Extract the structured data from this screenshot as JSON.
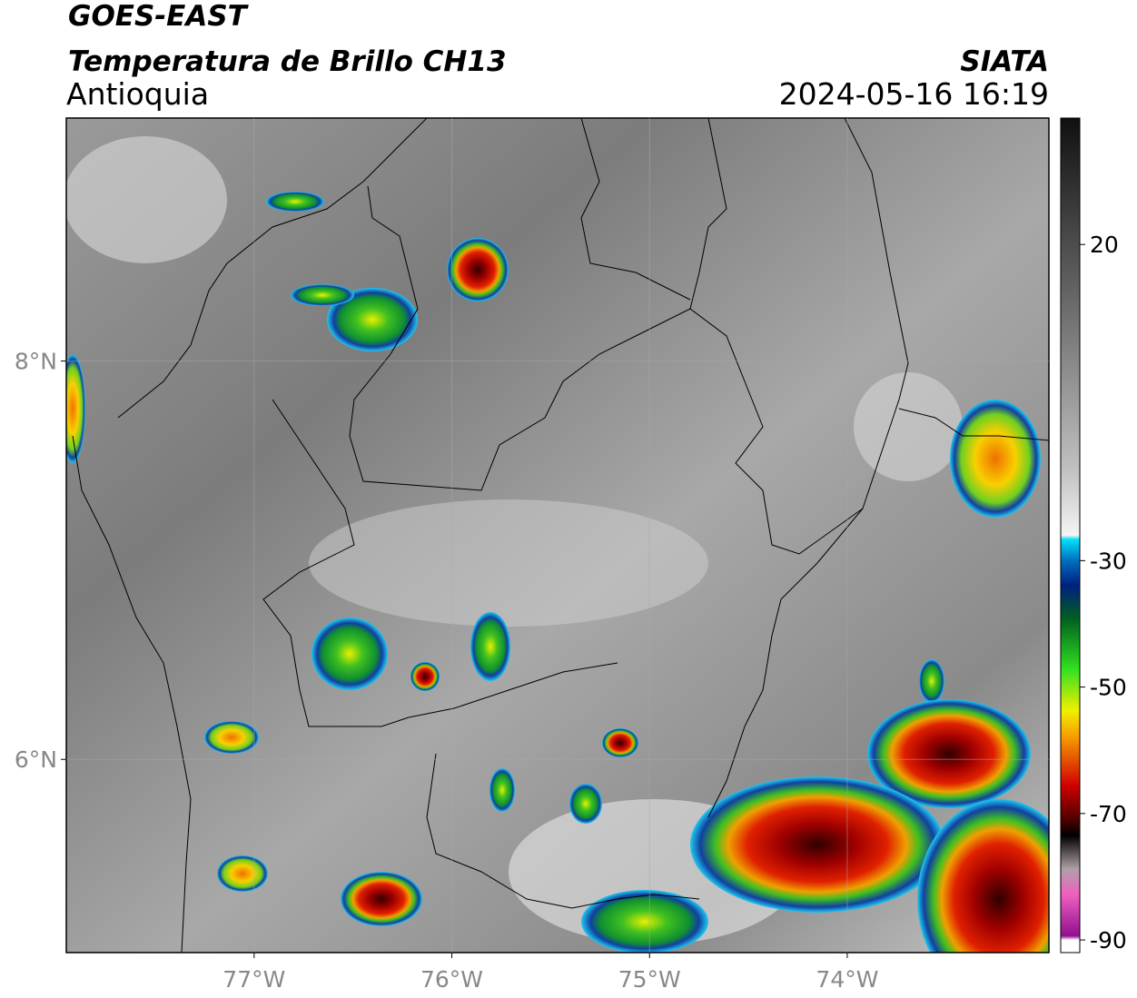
{
  "header": {
    "satellite": "GOES-EAST",
    "title": "Temperatura de Brillo CH13",
    "region": "Antioquia",
    "organization": "SIATA",
    "datetime": "2024-05-16 16:19"
  },
  "map": {
    "lonlim": [
      -77.95,
      -72.98
    ],
    "latlim": [
      5.03,
      9.22
    ],
    "lonticks": [
      {
        "value": -77,
        "label": "77°W"
      },
      {
        "value": -76,
        "label": "76°W"
      },
      {
        "value": -75,
        "label": "75°W"
      },
      {
        "value": -74,
        "label": "74°W"
      }
    ],
    "latticks": [
      {
        "value": 8,
        "label": "8°N"
      },
      {
        "value": 6,
        "label": "6°N"
      }
    ],
    "grid": true
  },
  "colorbar": {
    "lim": [
      -92,
      40
    ],
    "ticks": [
      20,
      -30,
      -50,
      -70,
      -90
    ]
  }
}
